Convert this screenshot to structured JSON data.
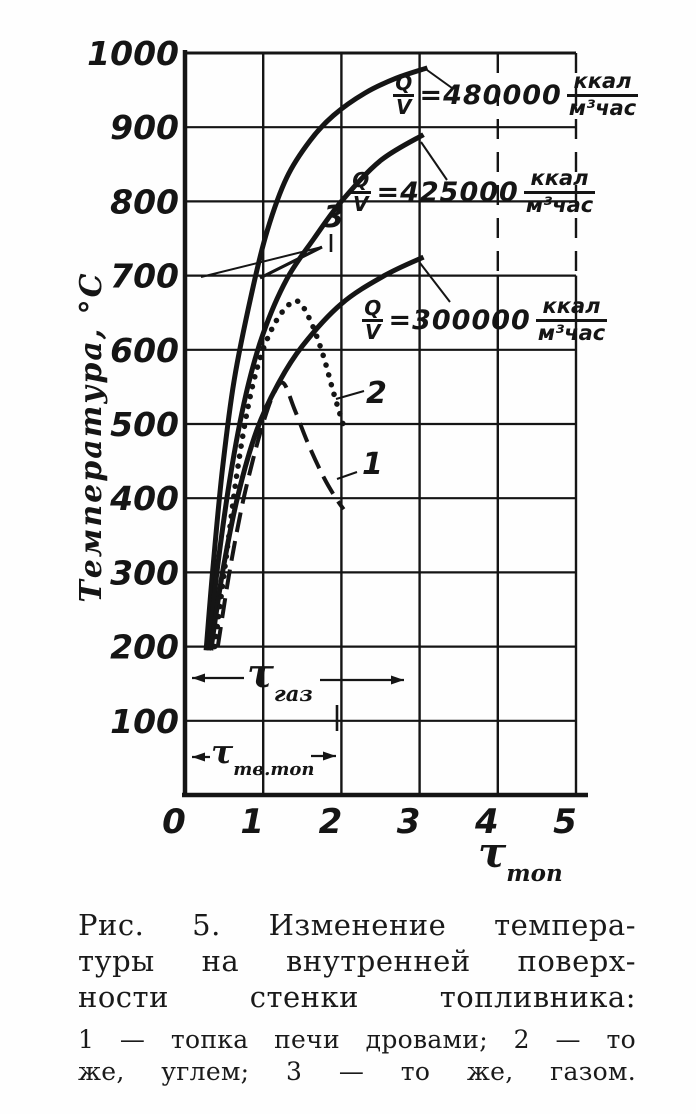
{
  "figure": {
    "background": "#fefefe",
    "ink": "#151515"
  },
  "chart_data": {
    "type": "line",
    "title": "",
    "xlabel": "τ_топ",
    "ylabel": "Температура, °С",
    "xlim": [
      0,
      5
    ],
    "ylim": [
      0,
      1000
    ],
    "x_ticks": [
      "0",
      "1",
      "2",
      "3",
      "4",
      "5"
    ],
    "y_ticks": [
      "100",
      "200",
      "300",
      "400",
      "500",
      "600",
      "700",
      "800",
      "900",
      "1000"
    ],
    "grid": true,
    "legend_position": "none",
    "series": [
      {
        "name": "gas-480000",
        "label": "Q/V=480000 ккал/м³час",
        "fuel": "газ",
        "line": "solid",
        "points": [
          [
            0.27,
            195
          ],
          [
            0.36,
            310
          ],
          [
            0.48,
            440
          ],
          [
            0.63,
            560
          ],
          [
            0.85,
            675
          ],
          [
            1.05,
            760
          ],
          [
            1.3,
            832
          ],
          [
            1.6,
            882
          ],
          [
            1.9,
            916
          ],
          [
            2.3,
            946
          ],
          [
            2.7,
            966
          ],
          [
            3.1,
            980
          ]
        ]
      },
      {
        "name": "gas-425000",
        "label": "Q/V=425000 ккал/м³час",
        "fuel": "газ",
        "line": "solid",
        "points": [
          [
            0.3,
            195
          ],
          [
            0.42,
            310
          ],
          [
            0.58,
            430
          ],
          [
            0.78,
            540
          ],
          [
            1.0,
            622
          ],
          [
            1.3,
            695
          ],
          [
            1.65,
            750
          ],
          [
            2.0,
            800
          ],
          [
            2.5,
            855
          ],
          [
            3.05,
            890
          ]
        ]
      },
      {
        "name": "gas-300000",
        "label": "Q/V=300000 ккал/м³час",
        "fuel": "газ",
        "line": "solid",
        "points": [
          [
            0.33,
            195
          ],
          [
            0.48,
            300
          ],
          [
            0.68,
            405
          ],
          [
            0.92,
            492
          ],
          [
            1.18,
            552
          ],
          [
            1.5,
            605
          ],
          [
            2.0,
            662
          ],
          [
            2.55,
            700
          ],
          [
            3.05,
            725
          ]
        ]
      },
      {
        "name": "coal",
        "label": "2",
        "fuel": "уголь",
        "line": "dotted",
        "points": [
          [
            0.38,
            200
          ],
          [
            0.52,
            315
          ],
          [
            0.66,
            430
          ],
          [
            0.8,
            520
          ],
          [
            0.95,
            585
          ],
          [
            1.12,
            630
          ],
          [
            1.3,
            658
          ],
          [
            1.45,
            665
          ],
          [
            1.6,
            640
          ],
          [
            1.76,
            595
          ],
          [
            1.9,
            542
          ],
          [
            2.02,
            500
          ]
        ]
      },
      {
        "name": "wood",
        "label": "1",
        "fuel": "дрова",
        "line": "dashed",
        "points": [
          [
            0.42,
            200
          ],
          [
            0.56,
            295
          ],
          [
            0.72,
            385
          ],
          [
            0.87,
            452
          ],
          [
            1.01,
            505
          ],
          [
            1.14,
            542
          ],
          [
            1.26,
            555
          ],
          [
            1.4,
            520
          ],
          [
            1.58,
            472
          ],
          [
            1.78,
            427
          ],
          [
            1.93,
            400
          ],
          [
            2.03,
            385
          ]
        ]
      }
    ],
    "annotations": [
      {
        "name": "tau-gas-span",
        "text": "τ_газ",
        "from_x": 0,
        "to_x": 2.85
      },
      {
        "name": "tau-solid-fuel-span",
        "text": "τ_тв.топ",
        "from_x": 0,
        "to_x": 1.95
      }
    ]
  },
  "labels": {
    "qv": [
      {
        "num": "Q",
        "den": "V",
        "value": "=480000",
        "unit_num": "ккал",
        "unit_den": "м³час"
      },
      {
        "num": "Q",
        "den": "V",
        "value": "=425000",
        "unit_num": "ккал",
        "unit_den": "м³час"
      },
      {
        "num": "Q",
        "den": "V",
        "value": "=300000",
        "unit_num": "ккал",
        "unit_den": "м³час"
      }
    ],
    "curve_numbers": {
      "gas": "3",
      "coal": "2",
      "wood": "1"
    },
    "tau_gas": {
      "symbol": "τ",
      "sub": "газ"
    },
    "tau_solid": {
      "symbol": "τ",
      "sub": "тв.топ"
    },
    "x_axis": {
      "symbol": "τ",
      "sub": "топ"
    }
  },
  "caption": {
    "line1": "Рис. 5. Изменение темпера-",
    "line2": "туры на внутренней поверх-",
    "line3": "ности стенки топливника:",
    "line4": "1 — топка печи дровами; 2 — то",
    "line5": "же, углем; 3 — то же, газом."
  }
}
